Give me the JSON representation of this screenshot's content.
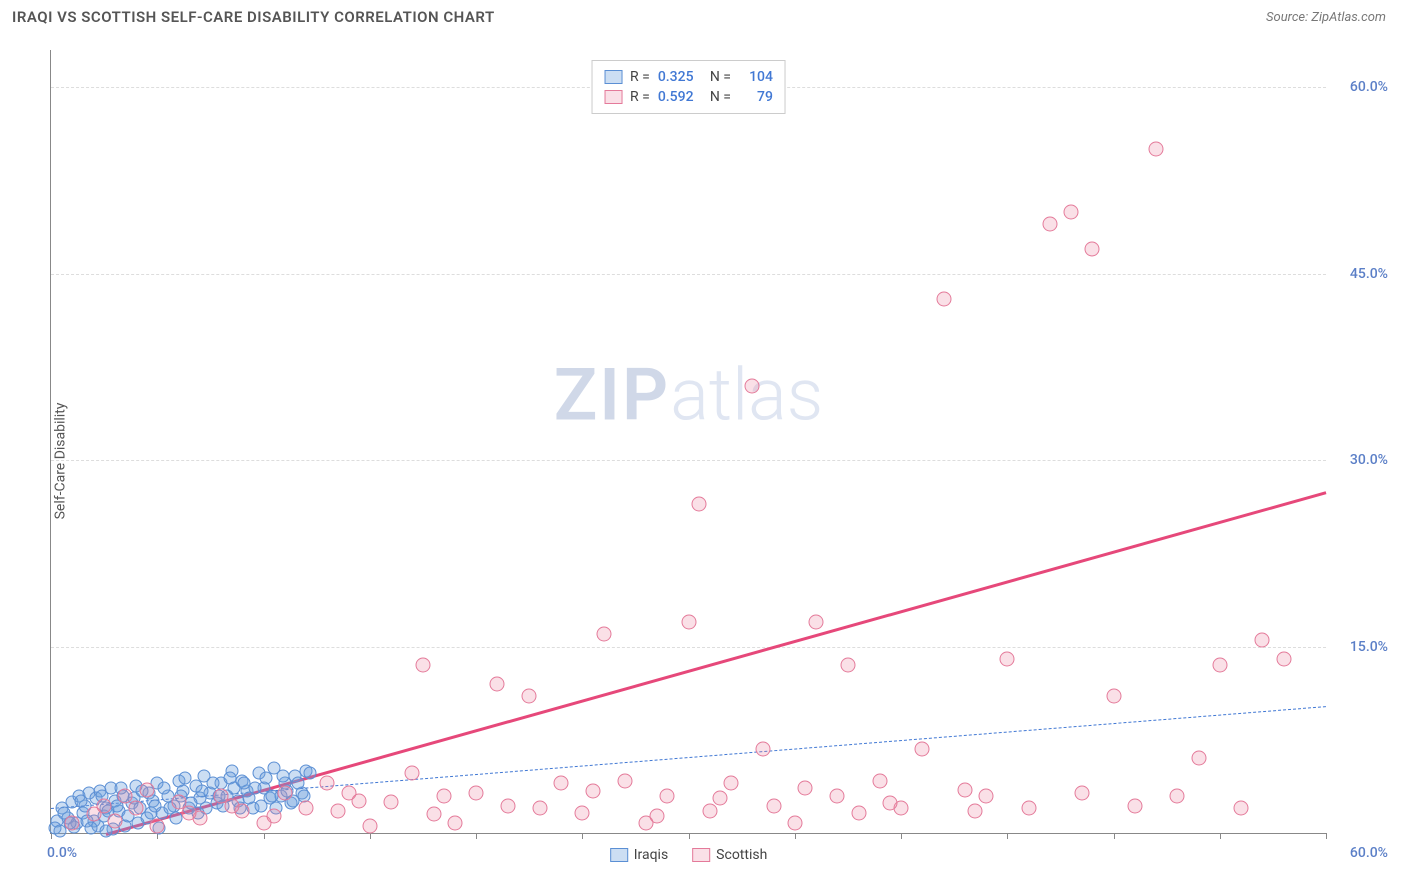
{
  "header": {
    "title": "IRAQI VS SCOTTISH SELF-CARE DISABILITY CORRELATION CHART",
    "source": "Source: ZipAtlas.com"
  },
  "chart": {
    "type": "scatter",
    "ylabel": "Self-Care Disability",
    "xlim": [
      0,
      60
    ],
    "ylim": [
      0,
      63
    ],
    "xtick_positions": [
      0,
      5,
      10,
      15,
      20,
      25,
      30,
      35,
      40,
      45,
      50,
      55,
      60
    ],
    "xaxis_labels": [
      {
        "pos": 0,
        "text": "0.0%"
      },
      {
        "pos": 60,
        "text": "60.0%"
      }
    ],
    "ygrid": [
      {
        "val": 15,
        "label": "15.0%"
      },
      {
        "val": 30,
        "label": "30.0%"
      },
      {
        "val": 45,
        "label": "45.0%"
      },
      {
        "val": 60,
        "label": "60.0%"
      }
    ],
    "watermark": {
      "part1": "ZIP",
      "part2": "atlas"
    },
    "stats": [
      {
        "series": "iraqis",
        "r_label": "R =",
        "r": "0.325",
        "n_label": "N =",
        "n": "104"
      },
      {
        "series": "scottish",
        "r_label": "R =",
        "r": "0.592",
        "n_label": "N =",
        "n": "79"
      }
    ],
    "series": {
      "iraqis": {
        "label": "Iraqis",
        "fill": "rgba(108,160,220,0.35)",
        "stroke": "#5b8fd4",
        "marker_size": 13,
        "trend": {
          "x1": 0,
          "y1": 2.0,
          "x2": 60,
          "y2": 10.2,
          "color": "#4178d4",
          "dash": true,
          "width": 1.5
        },
        "points": [
          [
            0.3,
            1.0
          ],
          [
            0.5,
            2.0
          ],
          [
            0.8,
            1.2
          ],
          [
            1.0,
            2.5
          ],
          [
            1.2,
            0.8
          ],
          [
            1.3,
            3.0
          ],
          [
            1.5,
            1.6
          ],
          [
            1.6,
            2.2
          ],
          [
            1.8,
            3.2
          ],
          [
            2.0,
            1.0
          ],
          [
            2.1,
            2.8
          ],
          [
            2.3,
            3.4
          ],
          [
            2.5,
            1.4
          ],
          [
            2.6,
            2.0
          ],
          [
            2.8,
            3.6
          ],
          [
            3.0,
            2.6
          ],
          [
            3.2,
            1.8
          ],
          [
            3.4,
            3.0
          ],
          [
            3.5,
            0.6
          ],
          [
            3.8,
            2.4
          ],
          [
            4.0,
            3.8
          ],
          [
            4.2,
            2.0
          ],
          [
            4.5,
            1.2
          ],
          [
            4.6,
            3.2
          ],
          [
            4.8,
            2.6
          ],
          [
            5.0,
            4.0
          ],
          [
            5.2,
            1.6
          ],
          [
            5.5,
            3.0
          ],
          [
            5.8,
            2.2
          ],
          [
            6.0,
            4.2
          ],
          [
            6.2,
            3.4
          ],
          [
            6.5,
            2.0
          ],
          [
            6.8,
            3.8
          ],
          [
            7.0,
            2.8
          ],
          [
            7.2,
            4.6
          ],
          [
            7.5,
            3.2
          ],
          [
            7.8,
            2.4
          ],
          [
            8.0,
            4.0
          ],
          [
            8.3,
            3.0
          ],
          [
            8.5,
            5.0
          ],
          [
            8.8,
            2.6
          ],
          [
            9.0,
            4.2
          ],
          [
            9.2,
            3.4
          ],
          [
            9.5,
            2.0
          ],
          [
            9.8,
            4.8
          ],
          [
            10.0,
            3.6
          ],
          [
            10.3,
            2.8
          ],
          [
            10.5,
            5.2
          ],
          [
            10.8,
            3.0
          ],
          [
            11.0,
            4.0
          ],
          [
            11.3,
            2.4
          ],
          [
            11.5,
            4.6
          ],
          [
            11.8,
            3.2
          ],
          [
            12.0,
            5.0
          ],
          [
            0.2,
            0.4
          ],
          [
            0.6,
            1.6
          ],
          [
            1.1,
            0.5
          ],
          [
            1.4,
            2.6
          ],
          [
            1.7,
            1.0
          ],
          [
            2.2,
            0.6
          ],
          [
            2.4,
            3.0
          ],
          [
            2.7,
            1.8
          ],
          [
            2.9,
            0.3
          ],
          [
            3.1,
            2.2
          ],
          [
            3.3,
            3.6
          ],
          [
            3.6,
            1.4
          ],
          [
            3.9,
            2.8
          ],
          [
            4.1,
            0.8
          ],
          [
            4.3,
            3.4
          ],
          [
            4.7,
            1.6
          ],
          [
            4.9,
            2.2
          ],
          [
            5.1,
            0.4
          ],
          [
            5.3,
            3.6
          ],
          [
            5.6,
            2.0
          ],
          [
            5.9,
            1.2
          ],
          [
            6.1,
            3.0
          ],
          [
            6.3,
            4.4
          ],
          [
            6.6,
            2.4
          ],
          [
            6.9,
            1.6
          ],
          [
            7.1,
            3.4
          ],
          [
            7.3,
            2.0
          ],
          [
            7.6,
            4.0
          ],
          [
            7.9,
            3.0
          ],
          [
            8.1,
            2.2
          ],
          [
            8.4,
            4.4
          ],
          [
            8.6,
            3.6
          ],
          [
            8.9,
            2.0
          ],
          [
            9.1,
            4.0
          ],
          [
            9.3,
            2.8
          ],
          [
            9.6,
            3.6
          ],
          [
            9.9,
            2.2
          ],
          [
            10.1,
            4.4
          ],
          [
            10.4,
            3.0
          ],
          [
            10.6,
            2.0
          ],
          [
            10.9,
            4.6
          ],
          [
            11.1,
            3.4
          ],
          [
            11.4,
            2.6
          ],
          [
            11.6,
            4.0
          ],
          [
            11.9,
            3.0
          ],
          [
            12.2,
            4.8
          ],
          [
            0.4,
            0.2
          ],
          [
            0.9,
            0.8
          ],
          [
            1.9,
            0.4
          ],
          [
            2.6,
            0.2
          ]
        ]
      },
      "scottish": {
        "label": "Scottish",
        "fill": "rgba(235,130,160,0.25)",
        "stroke": "#e47a9a",
        "marker_size": 15,
        "trend": {
          "x1": 0.5,
          "y1": -1.0,
          "x2": 60,
          "y2": 27.5,
          "color": "#e6487a",
          "dash": false,
          "width": 3
        },
        "points": [
          [
            1.0,
            0.8
          ],
          [
            2.0,
            1.5
          ],
          [
            2.5,
            2.2
          ],
          [
            3.0,
            1.0
          ],
          [
            3.5,
            3.0
          ],
          [
            4.0,
            2.0
          ],
          [
            5.0,
            0.6
          ],
          [
            6.0,
            2.5
          ],
          [
            7.0,
            1.2
          ],
          [
            8.0,
            3.0
          ],
          [
            9.0,
            1.8
          ],
          [
            10.0,
            0.8
          ],
          [
            11.0,
            3.2
          ],
          [
            12.0,
            2.0
          ],
          [
            13.0,
            4.0
          ],
          [
            13.5,
            1.8
          ],
          [
            14.0,
            3.2
          ],
          [
            15.0,
            0.6
          ],
          [
            16.0,
            2.5
          ],
          [
            17.0,
            4.8
          ],
          [
            17.5,
            13.5
          ],
          [
            18.0,
            1.5
          ],
          [
            19.0,
            0.8
          ],
          [
            20.0,
            3.2
          ],
          [
            21.0,
            12.0
          ],
          [
            22.5,
            11.0
          ],
          [
            23.0,
            2.0
          ],
          [
            24.0,
            4.0
          ],
          [
            25.0,
            1.6
          ],
          [
            26.0,
            16.0
          ],
          [
            27.0,
            4.2
          ],
          [
            28.0,
            0.8
          ],
          [
            29.0,
            3.0
          ],
          [
            30.0,
            17.0
          ],
          [
            30.5,
            26.5
          ],
          [
            31.0,
            1.8
          ],
          [
            32.0,
            4.0
          ],
          [
            33.0,
            36.0
          ],
          [
            33.5,
            6.8
          ],
          [
            34.0,
            2.2
          ],
          [
            35.0,
            0.8
          ],
          [
            36.0,
            17.0
          ],
          [
            37.0,
            3.0
          ],
          [
            37.5,
            13.5
          ],
          [
            38.0,
            1.6
          ],
          [
            39.0,
            4.2
          ],
          [
            40.0,
            2.0
          ],
          [
            41.0,
            6.8
          ],
          [
            42.0,
            43.0
          ],
          [
            43.0,
            3.5
          ],
          [
            44.0,
            3.0
          ],
          [
            45.0,
            14.0
          ],
          [
            46.0,
            2.0
          ],
          [
            47.0,
            49.0
          ],
          [
            48.0,
            50.0
          ],
          [
            49.0,
            47.0
          ],
          [
            50.0,
            11.0
          ],
          [
            51.0,
            2.2
          ],
          [
            52.0,
            55.0
          ],
          [
            53.0,
            3.0
          ],
          [
            54.0,
            6.0
          ],
          [
            55.0,
            13.5
          ],
          [
            56.0,
            2.0
          ],
          [
            57.0,
            15.5
          ],
          [
            58.0,
            14.0
          ],
          [
            4.5,
            3.5
          ],
          [
            6.5,
            1.6
          ],
          [
            8.5,
            2.2
          ],
          [
            10.5,
            1.4
          ],
          [
            14.5,
            2.6
          ],
          [
            18.5,
            3.0
          ],
          [
            21.5,
            2.2
          ],
          [
            25.5,
            3.4
          ],
          [
            28.5,
            1.4
          ],
          [
            31.5,
            2.8
          ],
          [
            35.5,
            3.6
          ],
          [
            39.5,
            2.4
          ],
          [
            43.5,
            1.8
          ],
          [
            48.5,
            3.2
          ]
        ]
      }
    },
    "legend_items": [
      {
        "series": "iraqis",
        "label": "Iraqis"
      },
      {
        "series": "scottish",
        "label": "Scottish"
      }
    ]
  }
}
